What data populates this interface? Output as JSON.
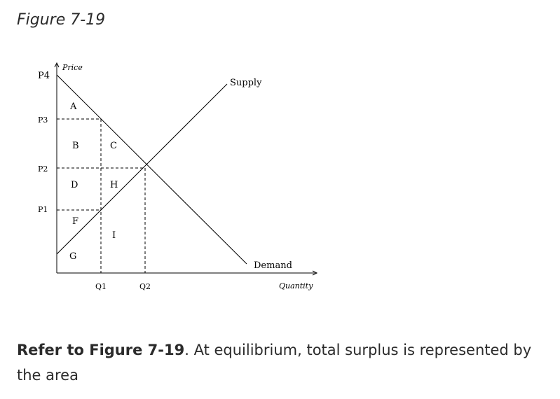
{
  "figure_title": "Figure 7-19",
  "axes": {
    "y_title": "Price",
    "x_title": "Quantity",
    "y_ticks": [
      "P4",
      "P3",
      "P2",
      "P1"
    ],
    "x_ticks": [
      "Q1",
      "Q2"
    ]
  },
  "curves": {
    "supply": "Supply",
    "demand": "Demand"
  },
  "areas": [
    "A",
    "B",
    "C",
    "D",
    "H",
    "F",
    "I",
    "G"
  ],
  "question": {
    "ref": "Refer to Figure 7-19",
    "text": ". At equilibrium, total surplus is represented by the area"
  }
}
